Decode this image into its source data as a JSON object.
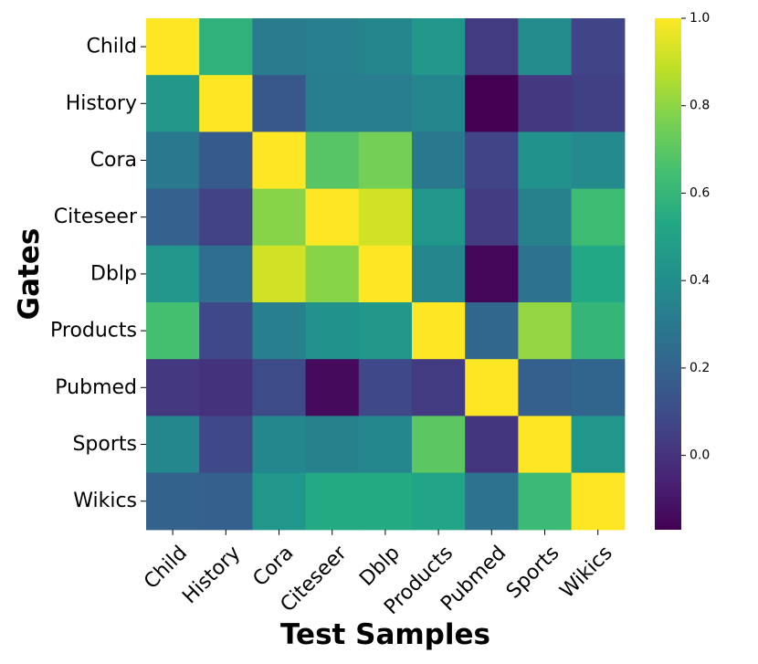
{
  "chart_data": {
    "type": "heatmap",
    "title": "",
    "xlabel": "Test Samples",
    "ylabel": "Gates",
    "x_categories": [
      "Child",
      "History",
      "Cora",
      "Citeseer",
      "Dblp",
      "Products",
      "Pubmed",
      "Sports",
      "Wikics"
    ],
    "y_categories": [
      "Child",
      "History",
      "Cora",
      "Citeseer",
      "Dblp",
      "Products",
      "Pubmed",
      "Sports",
      "Wikics"
    ],
    "values": [
      [
        1.0,
        0.58,
        0.31,
        0.33,
        0.36,
        0.44,
        0.03,
        0.39,
        0.07
      ],
      [
        0.45,
        1.0,
        0.15,
        0.32,
        0.32,
        0.36,
        -0.17,
        0.02,
        0.05
      ],
      [
        0.3,
        0.16,
        1.0,
        0.69,
        0.75,
        0.3,
        0.07,
        0.42,
        0.38
      ],
      [
        0.19,
        0.06,
        0.79,
        1.0,
        0.92,
        0.44,
        0.04,
        0.34,
        0.63
      ],
      [
        0.44,
        0.25,
        0.92,
        0.79,
        1.0,
        0.36,
        -0.15,
        0.27,
        0.53
      ],
      [
        0.65,
        0.08,
        0.33,
        0.42,
        0.45,
        1.0,
        0.22,
        0.81,
        0.6
      ],
      [
        0.02,
        0.0,
        0.1,
        -0.14,
        0.08,
        0.03,
        1.0,
        0.18,
        0.21
      ],
      [
        0.37,
        0.08,
        0.37,
        0.34,
        0.37,
        0.7,
        0.01,
        1.0,
        0.44
      ],
      [
        0.2,
        0.18,
        0.44,
        0.54,
        0.54,
        0.51,
        0.27,
        0.62,
        1.0
      ]
    ],
    "colormap": "viridis",
    "vmin": -0.17,
    "vmax": 1.0,
    "colorbar_ticks": [
      "0.0",
      "0.2",
      "0.4",
      "0.6",
      "0.8",
      "1.0"
    ],
    "colorbar_tick_values": [
      0.0,
      0.2,
      0.4,
      0.6,
      0.8,
      1.0
    ]
  }
}
